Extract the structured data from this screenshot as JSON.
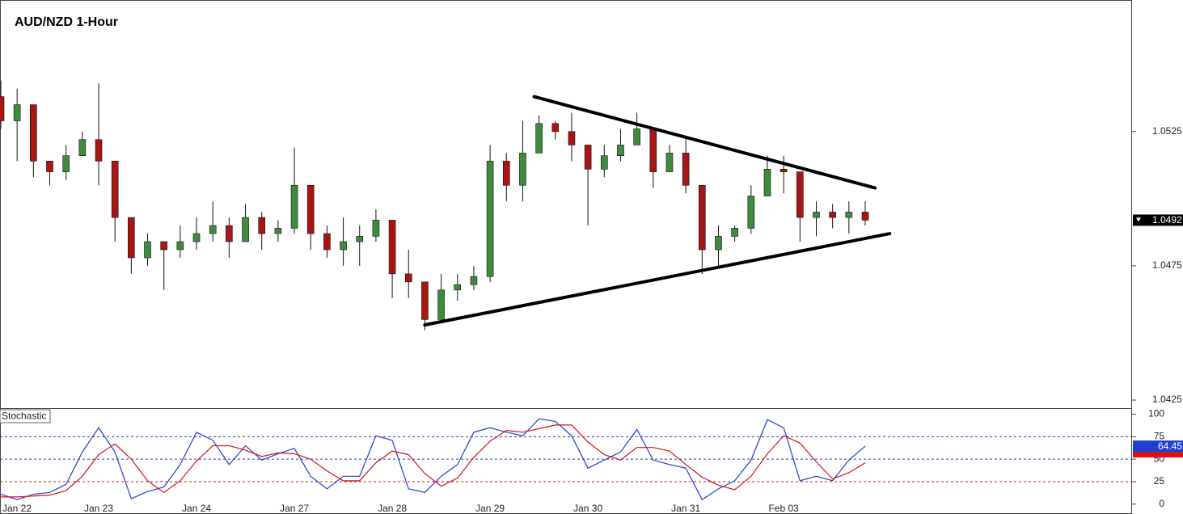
{
  "chart_data": {
    "type": "candlestick",
    "title": "AUD/NZD 1-Hour",
    "categories": [
      "Jan 22",
      null,
      null,
      null,
      null,
      null,
      "Jan 23",
      null,
      null,
      null,
      null,
      null,
      "Jan 24",
      null,
      null,
      null,
      null,
      null,
      "Jan 27",
      null,
      null,
      null,
      null,
      null,
      "Jan 28",
      null,
      null,
      null,
      null,
      null,
      "Jan 29",
      null,
      null,
      null,
      null,
      null,
      "Jan 30",
      null,
      null,
      null,
      null,
      null,
      "Jan 31",
      null,
      null,
      null,
      null,
      null,
      "Feb 03",
      null,
      null,
      null,
      null,
      null
    ],
    "candles": [
      [
        1.0538,
        1.0544,
        1.0526,
        1.0529
      ],
      [
        1.0529,
        1.0541,
        1.0514,
        1.0535
      ],
      [
        1.0535,
        1.0535,
        1.0508,
        1.0514
      ],
      [
        1.0514,
        1.0514,
        1.0505,
        1.051
      ],
      [
        1.051,
        1.052,
        1.0507,
        1.0516
      ],
      [
        1.0516,
        1.0525,
        1.0516,
        1.0522
      ],
      [
        1.0522,
        1.0543,
        1.0505,
        1.0514
      ],
      [
        1.0514,
        1.0514,
        1.0484,
        1.0493
      ],
      [
        1.0493,
        1.0493,
        1.0472,
        1.0478
      ],
      [
        1.0478,
        1.0487,
        1.0475,
        1.0484
      ],
      [
        1.0484,
        1.0484,
        1.0466,
        1.0481
      ],
      [
        1.0481,
        1.049,
        1.0478,
        1.0484
      ],
      [
        1.0484,
        1.0493,
        1.0481,
        1.0487
      ],
      [
        1.0487,
        1.0499,
        1.0484,
        1.049
      ],
      [
        1.049,
        1.0493,
        1.0478,
        1.0484
      ],
      [
        1.0484,
        1.0498,
        1.0484,
        1.0493
      ],
      [
        1.0493,
        1.0495,
        1.0481,
        1.0487
      ],
      [
        1.0487,
        1.0492,
        1.0484,
        1.0489
      ],
      [
        1.0489,
        1.0519,
        1.0487,
        1.0505
      ],
      [
        1.0505,
        1.0505,
        1.0481,
        1.0487
      ],
      [
        1.0487,
        1.049,
        1.0478,
        1.0481
      ],
      [
        1.0481,
        1.0493,
        1.0475,
        1.0484
      ],
      [
        1.0484,
        1.049,
        1.0475,
        1.0486
      ],
      [
        1.0486,
        1.0496,
        1.0484,
        1.0492
      ],
      [
        1.0492,
        1.0492,
        1.0463,
        1.0472
      ],
      [
        1.0472,
        1.0481,
        1.0463,
        1.0469
      ],
      [
        1.0469,
        1.0469,
        1.0451,
        1.0455
      ],
      [
        1.0455,
        1.0472,
        1.0455,
        1.0466
      ],
      [
        1.0466,
        1.0472,
        1.0462,
        1.0468
      ],
      [
        1.0468,
        1.0475,
        1.0466,
        1.0471
      ],
      [
        1.0471,
        1.052,
        1.0469,
        1.0514
      ],
      [
        1.0514,
        1.0517,
        1.0499,
        1.0505
      ],
      [
        1.0505,
        1.0529,
        1.0499,
        1.0517
      ],
      [
        1.0517,
        1.0531,
        1.0517,
        1.0528
      ],
      [
        1.0528,
        1.0529,
        1.0522,
        1.0525
      ],
      [
        1.0525,
        1.0532,
        1.0514,
        1.052
      ],
      [
        1.052,
        1.052,
        1.049,
        1.0511
      ],
      [
        1.0511,
        1.052,
        1.0508,
        1.0516
      ],
      [
        1.0516,
        1.0526,
        1.0514,
        1.052
      ],
      [
        1.052,
        1.0532,
        1.052,
        1.0526
      ],
      [
        1.0526,
        1.0526,
        1.0504,
        1.051
      ],
      [
        1.051,
        1.052,
        1.051,
        1.0517
      ],
      [
        1.0517,
        1.0523,
        1.0502,
        1.0505
      ],
      [
        1.0505,
        1.0505,
        1.0472,
        1.0481
      ],
      [
        1.0481,
        1.049,
        1.0475,
        1.0486
      ],
      [
        1.0486,
        1.049,
        1.0484,
        1.0489
      ],
      [
        1.0489,
        1.0505,
        1.0487,
        1.0501
      ],
      [
        1.0501,
        1.0516,
        1.0501,
        1.0511
      ],
      [
        1.0511,
        1.0516,
        1.0502,
        1.051
      ],
      [
        1.051,
        1.051,
        1.0484,
        1.0493
      ],
      [
        1.0493,
        1.0499,
        1.0486,
        1.0495
      ],
      [
        1.0495,
        1.0498,
        1.0489,
        1.0493
      ],
      [
        1.0493,
        1.0499,
        1.0487,
        1.0495
      ],
      [
        1.0495,
        1.0499,
        1.049,
        1.0492
      ]
    ],
    "up_color": "#3d8b3d",
    "down_color": "#a81515",
    "ylim": [
      1.0422,
      1.0574
    ],
    "yticks": [
      1.0425,
      1.0475,
      1.0525
    ],
    "last_price": 1.0492,
    "trendlines": [
      {
        "x": [
          32.7,
          53.6
        ],
        "y": [
          1.0538,
          1.0504
        ]
      },
      {
        "x": [
          26.0,
          54.5
        ],
        "y": [
          1.0453,
          1.0487
        ]
      }
    ],
    "indicator": {
      "title": "Stochastic",
      "ylim": [
        -11,
        105
      ],
      "yticks": [
        0,
        25,
        50,
        75,
        100
      ],
      "levels": [
        {
          "value": 75,
          "color": "#2a3ca8"
        },
        {
          "value": 50,
          "color": "#2a3ca8"
        },
        {
          "value": 25,
          "color": "#c02020"
        }
      ],
      "series": [
        {
          "color": "#1f3fd0",
          "values": [
            11,
            5,
            11,
            13,
            22,
            58,
            85,
            58,
            6,
            14,
            19,
            44,
            80,
            71,
            44,
            65,
            49,
            56,
            62,
            31,
            17,
            31,
            31,
            76,
            71,
            17,
            13,
            31,
            44,
            80,
            85,
            80,
            76,
            95,
            92,
            76,
            40,
            49,
            58,
            83,
            49,
            44,
            40,
            5,
            17,
            26,
            49,
            94,
            85,
            26,
            31,
            26,
            49,
            64.45
          ]
        },
        {
          "color": "#d41414",
          "values": [
            8,
            8,
            9,
            10,
            15,
            31,
            55,
            67,
            50,
            26,
            13,
            26,
            48,
            65,
            65,
            60,
            53,
            57,
            56,
            50,
            37,
            26,
            26,
            46,
            59,
            55,
            34,
            20,
            29,
            52,
            70,
            82,
            80,
            84,
            88,
            88,
            69,
            55,
            49,
            63,
            63,
            59,
            44,
            30,
            21,
            16,
            31,
            56,
            76,
            68,
            47,
            28,
            35,
            46
          ]
        }
      ]
    }
  }
}
